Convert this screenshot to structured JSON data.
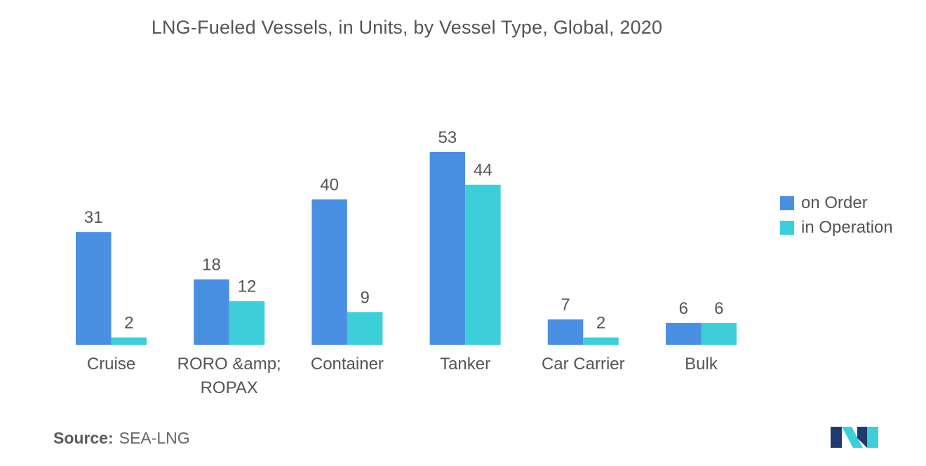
{
  "chart_data": {
    "type": "bar",
    "title": "LNG-Fueled Vessels, in Units, by Vessel Type, Global, 2020",
    "categories": [
      [
        "Cruise"
      ],
      [
        "RORO &amp;",
        "ROPAX"
      ],
      [
        "Container"
      ],
      [
        "Tanker"
      ],
      [
        "Car Carrier"
      ],
      [
        "Bulk"
      ]
    ],
    "series": [
      {
        "name": "on Order",
        "color": "#4a90e2",
        "values": [
          31,
          18,
          40,
          53,
          7,
          6
        ]
      },
      {
        "name": "in Operation",
        "color": "#3ccfd9",
        "values": [
          2,
          12,
          9,
          44,
          2,
          6
        ]
      }
    ],
    "ylim": [
      0,
      53
    ],
    "grid": false,
    "legend_position": "right",
    "data_labels": true
  },
  "source": {
    "label": "Source:",
    "value": "SEA-LNG"
  },
  "logo": {
    "colors": [
      "#1f3a6e",
      "#3ccfd9"
    ]
  }
}
